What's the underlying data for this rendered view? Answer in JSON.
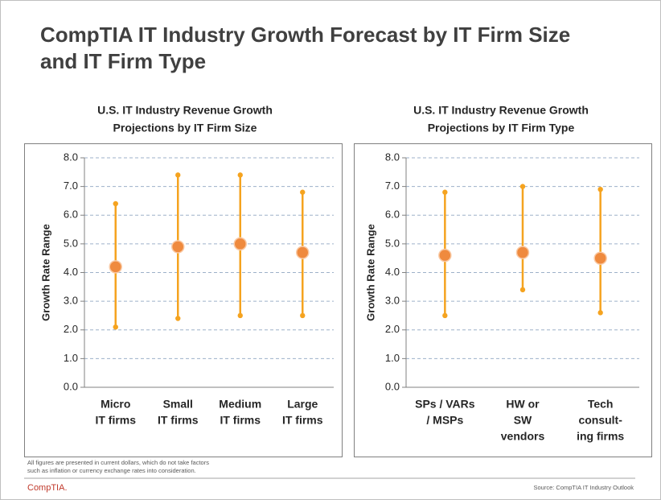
{
  "title": [
    "CompTIA IT Industry Growth Forecast by IT Firm Size",
    "and IT Firm Type"
  ],
  "footnote": [
    "All figures are presented in current dollars, which do not take factors",
    "such as inflation or currency exchange rates into consideration."
  ],
  "logo": "CompTIA.",
  "source": "Source: CompTIA IT Industry Outlook",
  "chart_data": [
    {
      "type": "range",
      "title": [
        "U.S. IT Industry Revenue Growth",
        "Projections by IT Firm Size"
      ],
      "ylabel": "Growth Rate Range",
      "categories": [
        [
          "Micro",
          "IT firms"
        ],
        [
          "Small",
          "IT firms"
        ],
        [
          "Medium",
          "IT firms"
        ],
        [
          "Large",
          "IT firms"
        ]
      ],
      "values": [
        4.2,
        4.9,
        5.0,
        4.7
      ],
      "low": [
        2.1,
        2.4,
        2.5,
        2.5
      ],
      "high": [
        6.4,
        7.4,
        7.4,
        6.8
      ],
      "color": "#f5a31f",
      "marker_color": "#ef8a3e",
      "ylim": [
        0,
        8
      ],
      "yticks": [
        {
          "value": 0,
          "label": "0.0"
        },
        {
          "value": 1,
          "label": "1.0"
        },
        {
          "value": 2,
          "label": "2.0"
        },
        {
          "value": 3,
          "label": "3.0"
        },
        {
          "value": 4,
          "label": "4.0"
        },
        {
          "value": 5,
          "label": "5.0"
        },
        {
          "value": 6,
          "label": "6.0"
        },
        {
          "value": 7,
          "label": "7.0"
        },
        {
          "value": 8,
          "label": "8.0"
        }
      ],
      "grid": true
    },
    {
      "type": "range",
      "title": [
        "U.S. IT Industry Revenue Growth",
        "Projections by IT Firm Type"
      ],
      "ylabel": "Growth Rate Range",
      "categories": [
        [
          "SPs / VARs",
          "/ MSPs"
        ],
        [
          "HW or",
          "SW",
          "vendors"
        ],
        [
          "Tech",
          "consult-",
          "ing firms"
        ]
      ],
      "values": [
        4.6,
        4.7,
        4.5
      ],
      "low": [
        2.5,
        3.4,
        2.6
      ],
      "high": [
        6.8,
        7.0,
        6.9
      ],
      "color": "#f5a31f",
      "marker_color": "#ef8a3e",
      "ylim": [
        0,
        8
      ],
      "yticks": [
        {
          "value": 0,
          "label": "0.0"
        },
        {
          "value": 1,
          "label": "1.0"
        },
        {
          "value": 2,
          "label": "2.0"
        },
        {
          "value": 3,
          "label": "3.0"
        },
        {
          "value": 4,
          "label": "4.0"
        },
        {
          "value": 5,
          "label": "5.0"
        },
        {
          "value": 6,
          "label": "6.0"
        },
        {
          "value": 7,
          "label": "7.0"
        },
        {
          "value": 8,
          "label": "8.0"
        }
      ],
      "grid": true
    }
  ]
}
